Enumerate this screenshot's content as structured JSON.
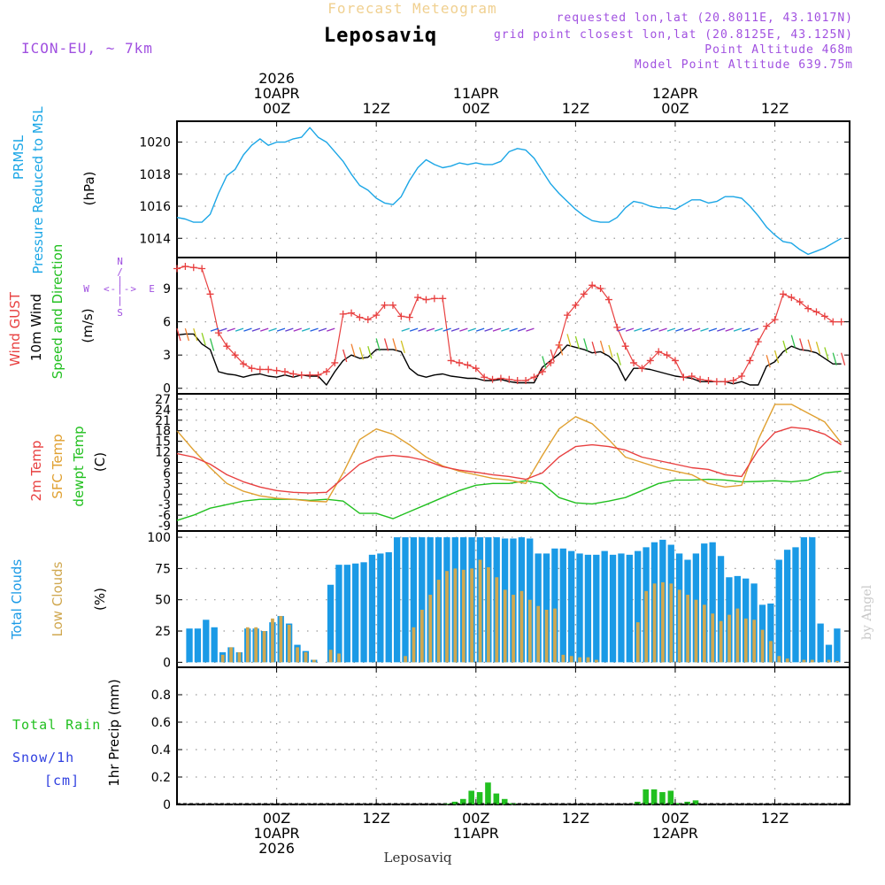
{
  "header": {
    "supertitle": "Forecast Meteogram",
    "location": "Leposaviq",
    "model": "ICON-EU, ~ 7km",
    "requested": "requested lon,lat (20.8011E, 43.1017N)",
    "gridpoint": "grid point closest lon,lat (20.8125E, 43.125N)",
    "point_alt": "Point Altitude 468m",
    "model_alt": "Model Point Altitude 639.75m",
    "credit": "by Angel",
    "footer_location": "Leposaviq"
  },
  "time_axis": {
    "hours_start": 0,
    "hours_end": 81,
    "ticks": [
      {
        "h": 12,
        "top": [
          "2026",
          "10APR",
          "00Z"
        ],
        "bottom": [
          "00Z",
          "10APR",
          "2026"
        ]
      },
      {
        "h": 24,
        "top": [
          "12Z"
        ],
        "bottom": [
          "12Z"
        ]
      },
      {
        "h": 36,
        "top": [
          "11APR",
          "00Z"
        ],
        "bottom": [
          "00Z",
          "11APR"
        ]
      },
      {
        "h": 48,
        "top": [
          "12Z"
        ],
        "bottom": [
          "12Z"
        ]
      },
      {
        "h": 60,
        "top": [
          "12APR",
          "00Z"
        ],
        "bottom": [
          "00Z",
          "12APR"
        ]
      },
      {
        "h": 72,
        "top": [
          "12Z"
        ],
        "bottom": [
          "12Z"
        ]
      }
    ]
  },
  "labels": {
    "prmsl_1": "PRMSL",
    "prmsl_2": "Pressure Reduced to MSL",
    "prmsl_unit": "(hPa)",
    "wind_1": "Wind GUST",
    "wind_2": "10m Wind",
    "wind_3": "Speed and Direction",
    "wind_unit": "(m/s)",
    "compass_n": "N",
    "compass_s": "S",
    "compass_w": "W",
    "compass_e": "E",
    "compass_ns_1": "/",
    "compass_ns_2": "|",
    "compass_we": "<-|->",
    "temp_1": "2m Temp",
    "temp_2": "SFC Temp",
    "temp_3": "dewpt Temp",
    "temp_unit": "(C)",
    "cloud_1": "Total Clouds",
    "cloud_2": "Low Clouds",
    "cloud_unit": "(%)",
    "precip_1": "Total  Rain",
    "precip_2": "Snow/1h",
    "precip_3": "[cm]",
    "precip_unit": "1hr Precip (mm)"
  },
  "colors": {
    "pressure": "#1ba6e6",
    "gust": "#e84040",
    "wind": "#000000",
    "temp2m": "#e84040",
    "sfc": "#e0a030",
    "dewpt": "#22c020",
    "total_clouds": "#1a9ae6",
    "low_clouds": "#d0a850",
    "rain": "#22c020",
    "snow": "#3040e0",
    "label_purple": "#a050e0",
    "supertitle": "#f0d090"
  },
  "chart_data": [
    {
      "type": "line",
      "title": "PRMSL Pressure Reduced to MSL",
      "ylabel": "(hPa)",
      "ylim": [
        1012.8,
        1021.3
      ],
      "yticks": [
        1014,
        1016,
        1018,
        1020
      ],
      "x_hours": [
        0,
        1,
        2,
        3,
        4,
        5,
        6,
        7,
        8,
        9,
        10,
        11,
        12,
        13,
        14,
        15,
        16,
        17,
        18,
        19,
        20,
        21,
        22,
        23,
        24,
        25,
        26,
        27,
        28,
        29,
        30,
        31,
        32,
        33,
        34,
        35,
        36,
        37,
        38,
        39,
        40,
        41,
        42,
        43,
        44,
        45,
        46,
        47,
        48,
        49,
        50,
        51,
        52,
        53,
        54,
        55,
        56,
        57,
        58,
        59,
        60,
        61,
        62,
        63,
        64,
        65,
        66,
        67,
        68,
        69,
        70,
        71,
        72,
        73,
        74,
        75,
        76,
        77,
        78,
        79,
        80
      ],
      "series": [
        {
          "name": "PRMSL",
          "values": [
            1015.3,
            1015.2,
            1015.0,
            1015.0,
            1015.5,
            1016.8,
            1017.9,
            1018.3,
            1019.2,
            1019.8,
            1020.2,
            1019.8,
            1020.0,
            1020.0,
            1020.2,
            1020.3,
            1020.9,
            1020.3,
            1020.0,
            1019.4,
            1018.8,
            1018.0,
            1017.3,
            1017.0,
            1016.5,
            1016.2,
            1016.1,
            1016.6,
            1017.6,
            1018.4,
            1018.9,
            1018.6,
            1018.4,
            1018.5,
            1018.7,
            1018.6,
            1018.7,
            1018.6,
            1018.6,
            1018.8,
            1019.4,
            1019.6,
            1019.5,
            1019.0,
            1018.2,
            1017.4,
            1016.8,
            1016.3,
            1015.8,
            1015.4,
            1015.1,
            1015.0,
            1015.0,
            1015.3,
            1015.9,
            1016.3,
            1016.2,
            1016.0,
            1015.9,
            1015.9,
            1015.8,
            1016.1,
            1016.4,
            1016.4,
            1016.2,
            1016.3,
            1016.6,
            1016.6,
            1016.5,
            1016.0,
            1015.4,
            1014.7,
            1014.2,
            1013.8,
            1013.7,
            1013.3,
            1013.0,
            1013.2,
            1013.4,
            1013.7,
            1014.0
          ]
        }
      ]
    },
    {
      "type": "line",
      "title": "Wind GUST / 10m Wind Speed and Direction",
      "ylabel": "(m/s)",
      "ylim": [
        -0.5,
        11.8
      ],
      "yticks": [
        0,
        3,
        6,
        9
      ],
      "x_hours": [
        0,
        1,
        2,
        3,
        4,
        5,
        6,
        7,
        8,
        9,
        10,
        11,
        12,
        13,
        14,
        15,
        16,
        17,
        18,
        19,
        20,
        21,
        22,
        23,
        24,
        25,
        26,
        27,
        28,
        29,
        30,
        31,
        32,
        33,
        34,
        35,
        36,
        37,
        38,
        39,
        40,
        41,
        42,
        43,
        44,
        45,
        46,
        47,
        48,
        49,
        50,
        51,
        52,
        53,
        54,
        55,
        56,
        57,
        58,
        59,
        60,
        61,
        62,
        63,
        64,
        65,
        66,
        67,
        68,
        69,
        70,
        71,
        72,
        73,
        74,
        75,
        76,
        77,
        78,
        79,
        80
      ],
      "series": [
        {
          "name": "Wind GUST",
          "values": [
            10.8,
            11.0,
            10.9,
            10.8,
            8.5,
            5.0,
            3.8,
            3.0,
            2.2,
            1.8,
            1.7,
            1.7,
            1.6,
            1.5,
            1.3,
            1.2,
            1.2,
            1.2,
            1.5,
            2.3,
            6.7,
            6.8,
            6.4,
            6.2,
            6.6,
            7.5,
            7.5,
            6.5,
            6.4,
            8.2,
            8.0,
            8.1,
            8.1,
            2.5,
            2.3,
            2.1,
            1.8,
            1.0,
            0.8,
            0.9,
            0.8,
            0.7,
            0.7,
            1.0,
            1.5,
            2.3,
            3.9,
            6.6,
            7.5,
            8.5,
            9.3,
            9.0,
            8.0,
            5.5,
            3.8,
            2.3,
            1.8,
            2.5,
            3.3,
            3.0,
            2.5,
            1.0,
            1.1,
            0.8,
            0.7,
            0.6,
            0.6,
            0.7,
            1.1,
            2.5,
            4.2,
            5.6,
            6.2,
            8.5,
            8.2,
            7.8,
            7.2,
            6.9,
            6.5,
            6.0,
            6.0
          ]
        },
        {
          "name": "10m Wind",
          "values": [
            4.8,
            4.9,
            4.9,
            4.0,
            3.5,
            1.5,
            1.3,
            1.2,
            1.0,
            1.2,
            1.3,
            1.1,
            1.0,
            1.2,
            1.0,
            1.2,
            1.1,
            1.1,
            0.3,
            1.5,
            2.5,
            3.0,
            2.7,
            2.8,
            3.5,
            3.5,
            3.5,
            3.3,
            1.8,
            1.2,
            1.0,
            1.2,
            1.3,
            1.1,
            1.0,
            0.9,
            0.9,
            0.7,
            0.7,
            0.8,
            0.6,
            0.5,
            0.5,
            0.5,
            1.9,
            2.5,
            3.1,
            3.9,
            3.7,
            3.5,
            3.2,
            3.3,
            2.9,
            2.2,
            0.7,
            1.8,
            1.8,
            1.7,
            1.5,
            1.3,
            1.1,
            1.0,
            0.9,
            0.6,
            0.6,
            0.6,
            0.6,
            0.4,
            0.6,
            0.3,
            0.3,
            2.0,
            2.4,
            3.3,
            3.8,
            3.5,
            3.4,
            3.2,
            2.7,
            2.2,
            2.2
          ]
        }
      ]
    },
    {
      "type": "line",
      "title": "2m Temp / SFC Temp / dewpt Temp",
      "ylabel": "(C)",
      "ylim": [
        -10.5,
        28.5
      ],
      "yticks": [
        -9,
        -6,
        -3,
        0,
        3,
        6,
        9,
        12,
        15,
        18,
        21,
        24,
        27
      ],
      "x_hours": [
        0,
        2,
        4,
        6,
        8,
        10,
        12,
        14,
        16,
        18,
        20,
        22,
        24,
        26,
        28,
        30,
        32,
        34,
        36,
        38,
        40,
        42,
        44,
        46,
        48,
        50,
        52,
        54,
        56,
        58,
        60,
        62,
        64,
        66,
        68,
        70,
        72,
        74,
        76,
        78,
        80
      ],
      "series": [
        {
          "name": "2m Temp",
          "values": [
            11.5,
            10.5,
            8.5,
            5.5,
            3.5,
            2.0,
            1.0,
            0.5,
            0.3,
            0.5,
            4.5,
            8.5,
            10.5,
            11.0,
            10.5,
            9.5,
            7.8,
            6.8,
            6.2,
            5.5,
            5.0,
            4.2,
            6.0,
            10.5,
            13.5,
            14.0,
            13.5,
            12.5,
            10.5,
            9.5,
            8.5,
            7.5,
            7.0,
            5.5,
            5.0,
            12.5,
            17.5,
            19.0,
            18.5,
            17.0,
            14.0
          ]
        },
        {
          "name": "SFC Temp",
          "values": [
            18.0,
            12.5,
            7.5,
            3.0,
            0.8,
            -0.5,
            -1.2,
            -1.5,
            -2.0,
            -2.2,
            6.0,
            15.5,
            18.5,
            17.0,
            14.0,
            10.5,
            8.0,
            6.5,
            5.5,
            4.5,
            4.0,
            3.0,
            11.0,
            18.5,
            22.0,
            20.0,
            15.5,
            10.5,
            9.0,
            7.5,
            6.5,
            5.5,
            3.0,
            2.0,
            2.5,
            15.5,
            25.5,
            25.5,
            23.0,
            20.5,
            14.5
          ]
        },
        {
          "name": "dewpt Temp",
          "values": [
            -7.5,
            -6.0,
            -4.0,
            -3.0,
            -2.0,
            -1.5,
            -1.5,
            -1.5,
            -1.8,
            -1.5,
            -2.0,
            -5.5,
            -5.5,
            -7.0,
            -5.0,
            -3.0,
            -1.0,
            1.0,
            2.5,
            3.0,
            3.0,
            3.8,
            3.0,
            -1.0,
            -2.5,
            -2.8,
            -2.0,
            -1.0,
            1.0,
            3.0,
            4.0,
            4.0,
            4.2,
            4.0,
            3.5,
            3.6,
            3.8,
            3.5,
            4.0,
            6.0,
            6.5
          ]
        }
      ]
    },
    {
      "type": "bar",
      "title": "Total Clouds / Low Clouds",
      "ylabel": "(%)",
      "ylim": [
        -4,
        105
      ],
      "yticks": [
        0,
        25,
        50,
        75,
        100
      ],
      "x_hours": [
        0,
        1,
        2,
        3,
        4,
        5,
        6,
        7,
        8,
        9,
        10,
        11,
        12,
        13,
        14,
        15,
        16,
        17,
        18,
        19,
        20,
        21,
        22,
        23,
        24,
        25,
        26,
        27,
        28,
        29,
        30,
        31,
        32,
        33,
        34,
        35,
        36,
        37,
        38,
        39,
        40,
        41,
        42,
        43,
        44,
        45,
        46,
        47,
        48,
        49,
        50,
        51,
        52,
        53,
        54,
        55,
        56,
        57,
        58,
        59,
        60,
        61,
        62,
        63,
        64,
        65,
        66,
        67,
        68,
        69,
        70,
        71,
        72,
        73,
        74,
        75,
        76,
        77,
        78,
        79,
        80
      ],
      "series": [
        {
          "name": "Total Clouds",
          "values": [
            0,
            27,
            27,
            34,
            28,
            8,
            12,
            8,
            27,
            27,
            25,
            32,
            37,
            31,
            14,
            9,
            2,
            0,
            62,
            78,
            78,
            79,
            80,
            86,
            87,
            88,
            100,
            100,
            100,
            100,
            100,
            100,
            100,
            100,
            100,
            100,
            100,
            100,
            100,
            99,
            99,
            100,
            99,
            87,
            87,
            91,
            91,
            89,
            87,
            86,
            86,
            89,
            86,
            87,
            86,
            89,
            92,
            96,
            98,
            94,
            87,
            82,
            87,
            95,
            96,
            85,
            68,
            69,
            67,
            63,
            46,
            47,
            82,
            90,
            92,
            100,
            100,
            31,
            14,
            27,
            0
          ]
        },
        {
          "name": "Low Clouds",
          "values": [
            0,
            0,
            0,
            0,
            0,
            6,
            12,
            8,
            28,
            28,
            25,
            35,
            37,
            30,
            12,
            8,
            2,
            0,
            10,
            7,
            0,
            0,
            0,
            0,
            0,
            0,
            0,
            5,
            28,
            42,
            54,
            66,
            73,
            75,
            74,
            75,
            82,
            76,
            68,
            58,
            54,
            57,
            50,
            45,
            42,
            43,
            6,
            5,
            4,
            4,
            2,
            0,
            0,
            0,
            0,
            32,
            57,
            63,
            64,
            63,
            58,
            54,
            50,
            46,
            39,
            33,
            38,
            43,
            35,
            34,
            26,
            17,
            5,
            3,
            0,
            2,
            2,
            0,
            2,
            1,
            0
          ]
        }
      ]
    },
    {
      "type": "bar",
      "title": "1hr Precip",
      "ylabel": "1hr Precip (mm)",
      "ylim": [
        0,
        1.0
      ],
      "yticks": [
        0,
        0.2,
        0.4,
        0.6,
        0.8
      ],
      "x_hours": [
        32,
        33,
        34,
        35,
        36,
        37,
        38,
        39,
        40,
        41,
        42,
        43,
        44,
        45,
        46,
        47,
        48,
        49,
        50,
        51,
        52,
        53,
        54,
        55,
        56,
        57,
        58,
        59,
        60,
        61,
        62,
        63
      ],
      "series": [
        {
          "name": "Total Rain",
          "values": [
            0.005,
            0.02,
            0.04,
            0.1,
            0.09,
            0.16,
            0.08,
            0.04,
            0.01,
            0,
            0,
            0,
            0,
            0,
            0,
            0,
            0,
            0,
            0,
            0,
            0,
            0,
            0,
            0.02,
            0.11,
            0.11,
            0.09,
            0.1,
            0.01,
            0.02,
            0.03,
            0
          ]
        },
        {
          "name": "Snow/1h",
          "values": [
            0,
            0,
            0,
            0,
            0,
            0,
            0,
            0,
            0,
            0,
            0,
            0,
            0,
            0,
            0,
            0,
            0,
            0,
            0,
            0,
            0,
            0,
            0,
            0,
            0,
            0,
            0,
            0,
            0,
            0,
            0,
            0
          ]
        }
      ]
    }
  ]
}
